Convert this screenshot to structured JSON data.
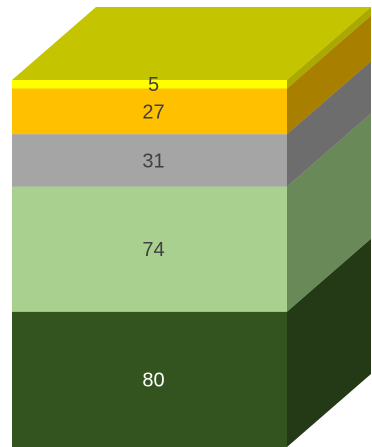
{
  "chart_data": {
    "type": "bar",
    "subtype": "stacked-3d-single-column",
    "title": "",
    "xlabel": "",
    "ylabel": "",
    "segments": [
      {
        "value": 80,
        "label": "80",
        "color": "#33541f",
        "side_color": "#243a16",
        "label_color": "#ffffff"
      },
      {
        "value": 74,
        "label": "74",
        "color": "#a9d08e",
        "side_color": "#698a58",
        "label_color": "#404040"
      },
      {
        "value": 31,
        "label": "31",
        "color": "#a5a5a5",
        "side_color": "#6d6d6d",
        "label_color": "#404040"
      },
      {
        "value": 27,
        "label": "27",
        "color": "#ffc000",
        "side_color": "#a97f00",
        "label_color": "#404040"
      },
      {
        "value": 5,
        "label": "5",
        "color": "#ffff00",
        "side_color": "#a9a900",
        "label_color": "#404040"
      }
    ],
    "top_color": "#c4c400"
  }
}
